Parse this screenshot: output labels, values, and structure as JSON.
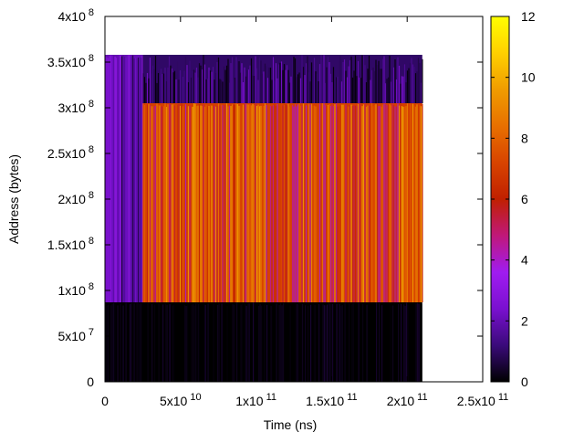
{
  "chart_data": {
    "type": "heatmap",
    "xlabel": "Time (ns)",
    "ylabel": "Address (bytes)",
    "xlim": [
      0,
      250000000000
    ],
    "ylim": [
      0,
      400000000
    ],
    "grid": false,
    "x_ticks": [
      {
        "value": 0,
        "base": "0",
        "exp": ""
      },
      {
        "value": 50000000000,
        "base": "5x10",
        "exp": "10"
      },
      {
        "value": 100000000000,
        "base": "1x10",
        "exp": "11"
      },
      {
        "value": 150000000000,
        "base": "1.5x10",
        "exp": "11"
      },
      {
        "value": 200000000000,
        "base": "2x10",
        "exp": "11"
      },
      {
        "value": 250000000000,
        "base": "2.5x10",
        "exp": "11"
      }
    ],
    "y_ticks": [
      {
        "value": 0,
        "base": "0",
        "exp": ""
      },
      {
        "value": 50000000,
        "base": "5x10",
        "exp": "7"
      },
      {
        "value": 100000000,
        "base": "1x10",
        "exp": "8"
      },
      {
        "value": 150000000,
        "base": "1.5x10",
        "exp": "8"
      },
      {
        "value": 200000000,
        "base": "2x10",
        "exp": "8"
      },
      {
        "value": 250000000,
        "base": "2.5x10",
        "exp": "8"
      },
      {
        "value": 300000000,
        "base": "3x10",
        "exp": "8"
      },
      {
        "value": 350000000,
        "base": "3.5x10",
        "exp": "8"
      },
      {
        "value": 400000000,
        "base": "4x10",
        "exp": "8"
      }
    ],
    "colorbar": {
      "range": [
        0,
        12
      ],
      "ticks": [
        "0",
        "2",
        "4",
        "6",
        "8",
        "10",
        "12"
      ],
      "palette": [
        "#000000",
        "#3a0a7a",
        "#7a10d0",
        "#a01cf0",
        "#c0187a",
        "#c02000",
        "#d84400",
        "#e87000",
        "#f09c00",
        "#ffd000",
        "#ffff00"
      ]
    },
    "data_extent": {
      "x_range": [
        0,
        210000000000
      ],
      "y_range": [
        0,
        358000000
      ]
    },
    "regions": [
      {
        "name": "address range 0–8.7x10^7, full time span",
        "x_range": [
          0,
          210000000000
        ],
        "y_range": [
          0,
          87000000
        ],
        "level": 0
      },
      {
        "name": "early phase, 0–2.5x10^10 ns",
        "x_range": [
          0,
          25000000000
        ],
        "y_range": [
          87000000,
          358000000
        ],
        "level": 2
      },
      {
        "name": "steady phase hot region",
        "x_range": [
          25000000000,
          210000000000
        ],
        "y_range": [
          87000000,
          305000000
        ],
        "level": 7
      },
      {
        "name": "steady phase upper band",
        "x_range": [
          25000000000,
          210000000000
        ],
        "y_range": [
          305000000,
          358000000
        ],
        "level": 1
      }
    ]
  }
}
